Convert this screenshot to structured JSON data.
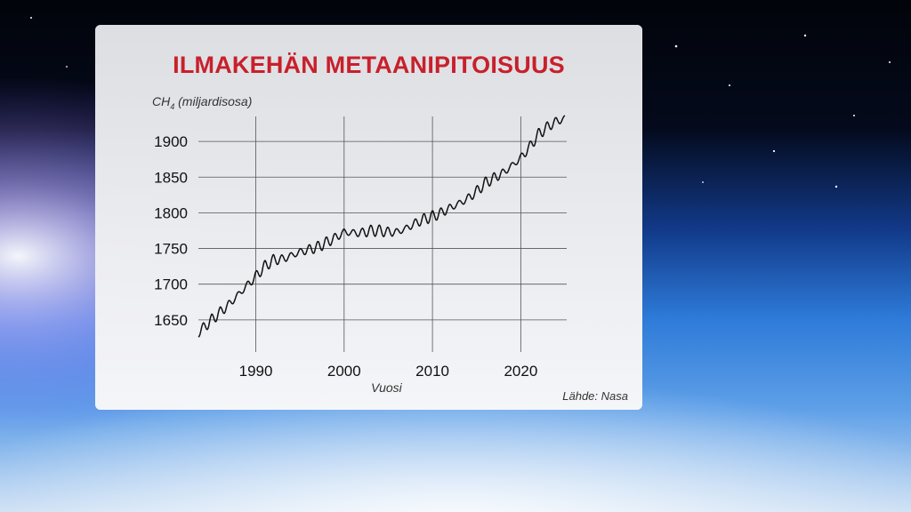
{
  "chart_data": {
    "type": "line",
    "title": "ILMAKEHÄN METAANIPITOISUUS",
    "ylabel_main": "CH",
    "ylabel_sub": "4",
    "ylabel_rest": " (miljardisosa)",
    "xlabel": "Vuosi",
    "source": "Lähde: Nasa",
    "xlim": [
      1983.5,
      2025.2
    ],
    "ylim": [
      1605,
      1935
    ],
    "xticks": [
      1990,
      2000,
      2010,
      2020
    ],
    "xtick_labels": [
      "1990",
      "2000",
      "2010",
      "2020"
    ],
    "yticks": [
      1650,
      1700,
      1750,
      1800,
      1850,
      1900
    ],
    "ytick_labels": [
      "1650",
      "1700",
      "1750",
      "1800",
      "1850",
      "1900"
    ],
    "grid": true,
    "series": [
      {
        "x": [
          1983.5,
          1985,
          1987,
          1989,
          1990,
          1991,
          1992,
          1993,
          1995,
          1997,
          1999,
          2000,
          2001,
          2002,
          2003,
          2004,
          2005,
          2006,
          2007,
          2008,
          2009,
          2010,
          2011,
          2012,
          2013,
          2014,
          2015,
          2016,
          2017,
          2018,
          2019,
          2020,
          2021,
          2022,
          2023,
          2024,
          2025
        ],
        "y": [
          1632,
          1650,
          1672,
          1698,
          1711,
          1725,
          1734,
          1735,
          1745,
          1752,
          1765,
          1773,
          1772,
          1772,
          1775,
          1775,
          1773,
          1773,
          1778,
          1785,
          1791,
          1795,
          1800,
          1807,
          1813,
          1820,
          1830,
          1842,
          1849,
          1856,
          1866,
          1877,
          1892,
          1910,
          1920,
          1928,
          1932
        ],
        "seasonal_amplitude": 6
      }
    ]
  }
}
